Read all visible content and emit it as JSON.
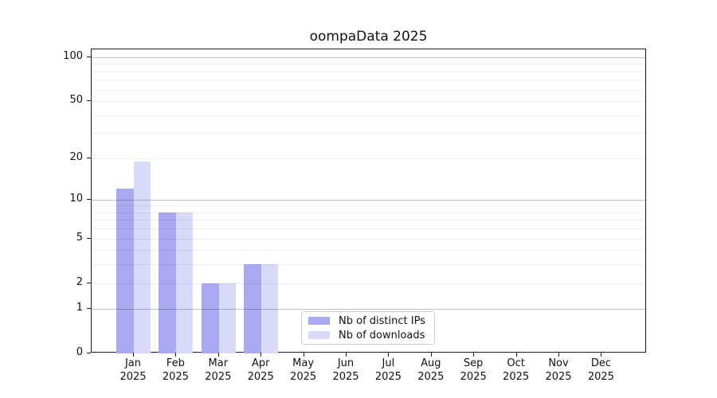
{
  "chart_data": {
    "type": "bar",
    "title": "oompaData 2025",
    "categories": [
      "Jan 2025",
      "Feb 2025",
      "Mar 2025",
      "Apr 2025",
      "May 2025",
      "Jun 2025",
      "Jul 2025",
      "Aug 2025",
      "Sep 2025",
      "Oct 2025",
      "Nov 2025",
      "Dec 2025"
    ],
    "months": [
      "Jan",
      "Feb",
      "Mar",
      "Apr",
      "May",
      "Jun",
      "Jul",
      "Aug",
      "Sep",
      "Oct",
      "Nov",
      "Dec"
    ],
    "year": "2025",
    "series": [
      {
        "name": "Nb of distinct IPs",
        "color": "#a9a9f2",
        "values": [
          12,
          8,
          2,
          3,
          0,
          0,
          0,
          0,
          0,
          0,
          0,
          0
        ]
      },
      {
        "name": "Nb of downloads",
        "color": "#d9d9fa",
        "values": [
          19,
          8,
          2,
          3,
          0,
          0,
          0,
          0,
          0,
          0,
          0,
          0
        ]
      }
    ],
    "xlabel": "",
    "ylabel": "",
    "y_scale": "log1p",
    "ylim": [
      0,
      113
    ],
    "y_tick_values": [
      0,
      1,
      2,
      5,
      10,
      20,
      50,
      100
    ],
    "y_tick_labels": [
      "0",
      "1",
      "2",
      "5",
      "10",
      "20",
      "50",
      "100"
    ],
    "y_major_gridlines": [
      1,
      10,
      100
    ],
    "y_minor_gridlines": [
      2,
      3,
      4,
      5,
      6,
      7,
      8,
      9,
      20,
      30,
      40,
      50,
      60,
      70,
      80,
      90
    ],
    "grid": "on",
    "legend_position": "inside lower-center"
  },
  "colors": {
    "background": "#ffffff",
    "spine": "#1a1a1a",
    "bar_distinct_ips": "#a9a9f2",
    "bar_downloads": "#d9d9fa",
    "legend_border": "#cccccc",
    "text": "#111111"
  }
}
